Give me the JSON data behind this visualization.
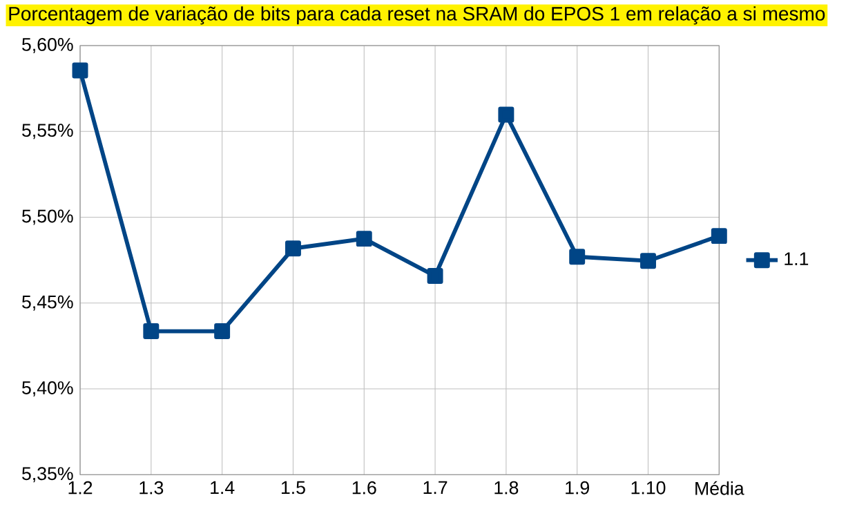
{
  "chart_data": {
    "type": "line",
    "title": "Porcentagem de variação de bits para cada reset na SRAM do EPOS 1 em relação a si mesmo",
    "categories": [
      "1.2",
      "1.3",
      "1.4",
      "1.5",
      "1.6",
      "1.7",
      "1.8",
      "1.9",
      "1.10",
      "Média"
    ],
    "series": [
      {
        "name": "1.1",
        "color": "#004586",
        "values": [
          5.5855,
          5.4336,
          5.4336,
          5.4818,
          5.4875,
          5.4658,
          5.5598,
          5.477,
          5.4746,
          5.4891
        ]
      }
    ],
    "ylim": [
      5.35,
      5.6
    ],
    "yticks": [
      {
        "value": 5.35,
        "label": "5,35%"
      },
      {
        "value": 5.4,
        "label": "5,40%"
      },
      {
        "value": 5.45,
        "label": "5,45%"
      },
      {
        "value": 5.5,
        "label": "5,50%"
      },
      {
        "value": 5.55,
        "label": "5,55%"
      },
      {
        "value": 5.6,
        "label": "5,60%"
      }
    ],
    "grid": true,
    "legend": "right",
    "marker": "square",
    "line_style": "solid"
  }
}
